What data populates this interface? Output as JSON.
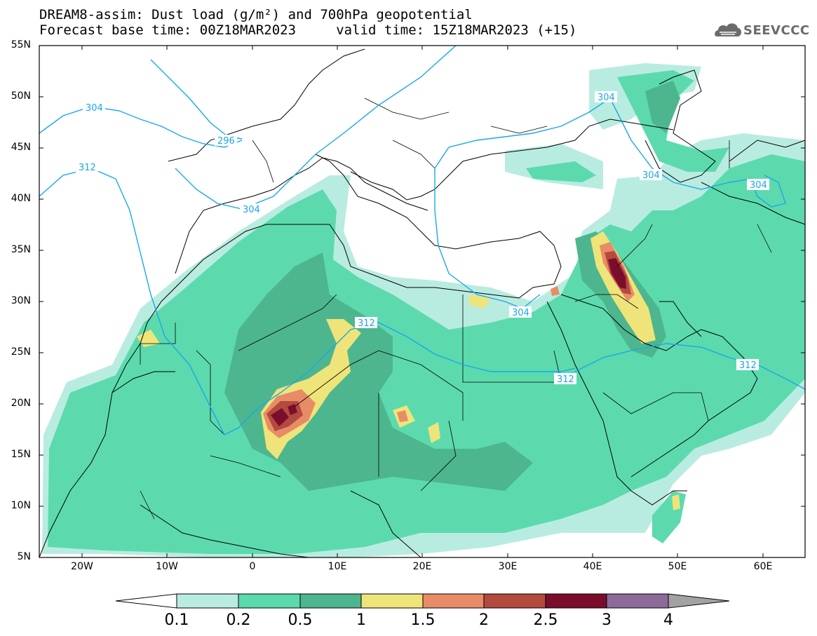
{
  "header": {
    "title_line1": "DREAM8-assim: Dust load (g/m²) and 700hPa geopotential",
    "title_line2": "Forecast base time: 00Z18MAR2023     valid time: 15Z18MAR2023 (+15)",
    "logo_text": "SEEVCCC",
    "logo_icon": "cloud-icon"
  },
  "map": {
    "lat_labels": [
      "55N",
      "50N",
      "45N",
      "40N",
      "35N",
      "30N",
      "25N",
      "20N",
      "15N",
      "10N",
      "5N"
    ],
    "lon_labels": [
      "20W",
      "10W",
      "0",
      "10E",
      "20E",
      "30E",
      "40E",
      "50E",
      "60E"
    ],
    "lat_range": [
      5,
      55
    ],
    "lon_range": [
      -25,
      65
    ],
    "contour_labels": [
      "304",
      "296",
      "312",
      "304",
      "304",
      "304",
      "312",
      "304",
      "312",
      "312"
    ]
  },
  "colorbar": {
    "levels": [
      "0.1",
      "0.2",
      "0.5",
      "1",
      "1.5",
      "2",
      "2.5",
      "3",
      "4"
    ],
    "colors": [
      "#ffffff",
      "#b9ece0",
      "#5cdaae",
      "#4db68e",
      "#efe47a",
      "#e88c67",
      "#b24a3e",
      "#7b0d2c",
      "#8e6a9b",
      "#a2a2a2"
    ]
  }
}
